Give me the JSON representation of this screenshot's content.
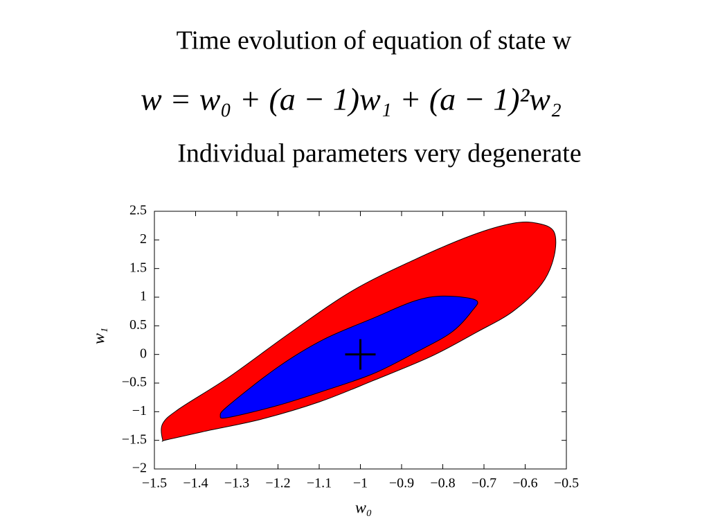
{
  "heading": "Time evolution of equation of state w",
  "equation": "w = w₀ + (a − 1)w₁ + (a − 1)²w₂",
  "subheading": "Individual parameters very degenerate",
  "chart_data": {
    "type": "contour",
    "xlabel": "w₀",
    "ylabel": "w₁",
    "xlim": [
      -1.5,
      -0.5
    ],
    "ylim": [
      -2,
      2.5
    ],
    "xticks": [
      {
        "value": -1.5,
        "label": "−1.5"
      },
      {
        "value": -1.4,
        "label": "−1.4"
      },
      {
        "value": -1.3,
        "label": "−1.3"
      },
      {
        "value": -1.2,
        "label": "−1.2"
      },
      {
        "value": -1.1,
        "label": "−1.1"
      },
      {
        "value": -1,
        "label": "−1"
      },
      {
        "value": -0.9,
        "label": "−0.9"
      },
      {
        "value": -0.8,
        "label": "−0.8"
      },
      {
        "value": -0.7,
        "label": "−0.7"
      },
      {
        "value": -0.6,
        "label": "−0.6"
      },
      {
        "value": -0.5,
        "label": "−0.5"
      }
    ],
    "yticks": [
      {
        "value": -2,
        "label": "−2"
      },
      {
        "value": -1.5,
        "label": "−1.5"
      },
      {
        "value": -1,
        "label": "−1"
      },
      {
        "value": -0.5,
        "label": "−0.5"
      },
      0,
      0.5,
      1,
      1.5,
      2,
      2.5
    ],
    "series": [
      {
        "color": "#ff0000",
        "x": [
          -1.48,
          -1.48,
          -1.44,
          -1.32,
          -1.17,
          -1.02,
          -0.87,
          -0.73,
          -0.63,
          -0.57,
          -0.53,
          -0.53,
          -0.56,
          -0.63,
          -0.72,
          -0.83,
          -0.97,
          -1.1,
          -1.24,
          -1.37,
          -1.47
        ],
        "values": [
          -1.49,
          -1.21,
          -0.95,
          -0.4,
          0.38,
          1.11,
          1.65,
          2.08,
          2.29,
          2.29,
          2.14,
          1.71,
          1.23,
          0.75,
          0.38,
          -0.04,
          -0.46,
          -0.83,
          -1.13,
          -1.33,
          -1.49
        ]
      },
      {
        "color": "#0000ff",
        "x": [
          -1.34,
          -1.32,
          -1.2,
          -1.09,
          -0.97,
          -0.87,
          -0.8,
          -0.72,
          -0.73,
          -0.78,
          -0.87,
          -0.97,
          -1.09,
          -1.2,
          -1.32
        ],
        "values": [
          -1.07,
          -0.89,
          -0.22,
          0.26,
          0.63,
          0.93,
          1.02,
          0.95,
          0.75,
          0.38,
          0.02,
          -0.34,
          -0.64,
          -0.89,
          -1.1
        ]
      }
    ],
    "marker": {
      "x": -1,
      "y": 0,
      "color": "#000000"
    }
  }
}
